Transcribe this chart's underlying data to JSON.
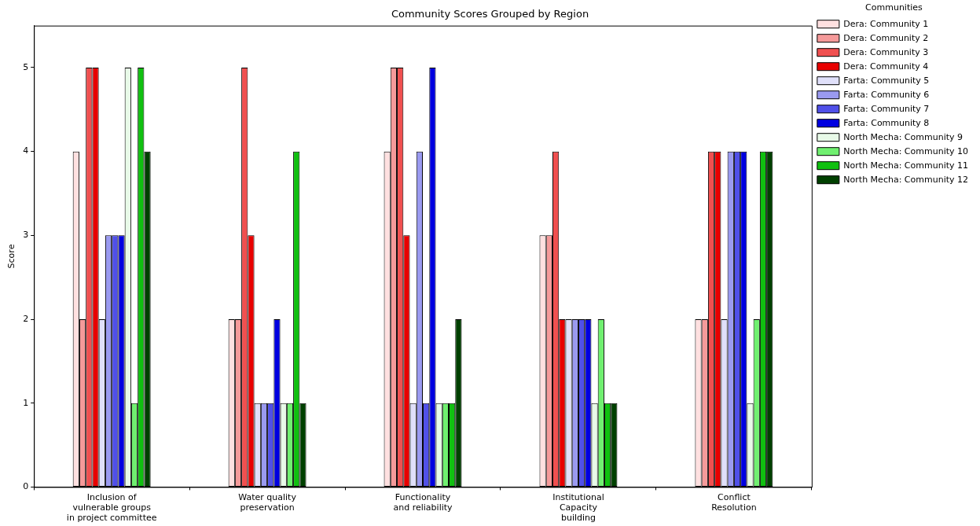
{
  "chart_data": {
    "type": "bar",
    "title": "Community Scores Grouped by Region",
    "ylabel": "Score",
    "legend_title": "Communities",
    "legend": "top right",
    "grid": false,
    "categories": [
      "Inclusion of\nvulnerable groups\nin project committee",
      "Water quality\npreservation",
      "Functionality\nand reliability",
      "Institutional\nCapacity\nbuilding",
      "Conflict\nResolution"
    ],
    "ylim": [
      0,
      5.5
    ],
    "yticks": [
      0,
      1,
      2,
      3,
      4,
      5
    ],
    "series": [
      {
        "name": "Dera: Community 1",
        "color": "#ffe0e0",
        "values": [
          4,
          2,
          4,
          3,
          2
        ]
      },
      {
        "name": "Dera: Community 2",
        "color": "#f59a9a",
        "values": [
          2,
          2,
          5,
          3,
          2
        ]
      },
      {
        "name": "Dera: Community 3",
        "color": "#f05050",
        "values": [
          5,
          5,
          5,
          4,
          4
        ]
      },
      {
        "name": "Dera: Community 4",
        "color": "#e80000",
        "values": [
          5,
          3,
          3,
          2,
          4
        ]
      },
      {
        "name": "Farta: Community 5",
        "color": "#e0e0fa",
        "values": [
          2,
          1,
          1,
          2,
          2
        ]
      },
      {
        "name": "Farta: Community 6",
        "color": "#9a9af0",
        "values": [
          3,
          1,
          4,
          2,
          4
        ]
      },
      {
        "name": "Farta: Community 7",
        "color": "#5050e8",
        "values": [
          3,
          1,
          1,
          2,
          4
        ]
      },
      {
        "name": "Farta: Community 8",
        "color": "#0000e0",
        "values": [
          3,
          2,
          5,
          2,
          4
        ]
      },
      {
        "name": "North Mecha: Community 9",
        "color": "#e8fae8",
        "values": [
          5,
          1,
          1,
          1,
          1
        ]
      },
      {
        "name": "North Mecha: Community 10",
        "color": "#70f070",
        "values": [
          1,
          1,
          1,
          2,
          2
        ]
      },
      {
        "name": "North Mecha: Community 11",
        "color": "#10c010",
        "values": [
          5,
          4,
          1,
          1,
          4
        ]
      },
      {
        "name": "North Mecha: Community 12",
        "color": "#004000",
        "values": [
          4,
          1,
          2,
          1,
          4
        ]
      }
    ]
  }
}
